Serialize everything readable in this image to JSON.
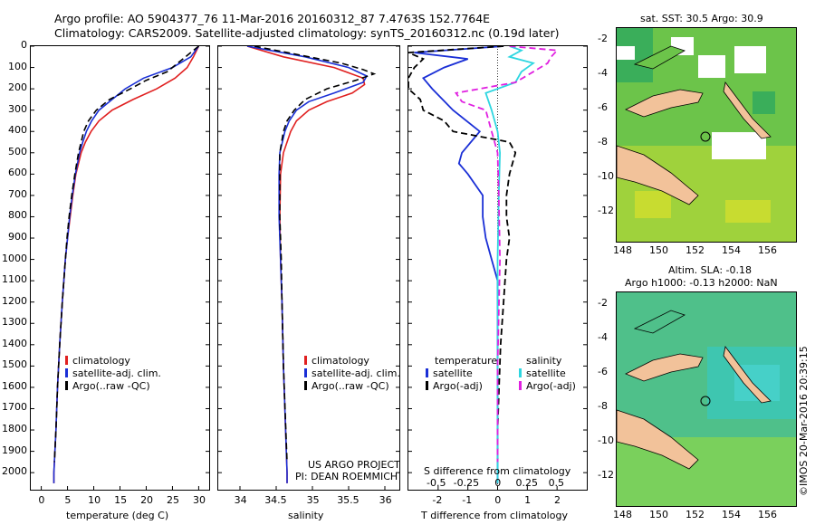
{
  "header": {
    "line1": "Argo profile: AO 5904377_76 11-Mar-2016 20160312_87 7.4763S 152.7764E",
    "line2": "Climatology: CARS2009. Satellite-adjusted climatology: synTS_20160312.nc (0.19d later)"
  },
  "colors": {
    "climatology": "#e02020",
    "satellite": "#1a2fd6",
    "argo": "#000000",
    "sat_s": "#2ed6e0",
    "argo_s": "#e020e0"
  },
  "depth_axis": {
    "ticks": [
      0,
      100,
      200,
      300,
      400,
      500,
      600,
      700,
      800,
      900,
      1000,
      1100,
      1200,
      1300,
      1400,
      1500,
      1600,
      1700,
      1800,
      1900,
      2000
    ],
    "range": [
      0,
      2080
    ]
  },
  "chart_data": [
    {
      "type": "line",
      "name": "temperature",
      "xlabel": "temperature (deg C)",
      "xlim": [
        -2,
        32
      ],
      "xticks": [
        0,
        5,
        10,
        15,
        20,
        25,
        30
      ],
      "series": [
        {
          "name": "climatology",
          "depth": [
            0,
            50,
            100,
            150,
            200,
            250,
            300,
            350,
            400,
            450,
            500,
            600,
            700,
            800,
            900,
            1000,
            1200,
            1400,
            1600,
            1800,
            2000,
            2050
          ],
          "values": [
            30,
            29,
            27.8,
            25.5,
            22,
            17.5,
            13.5,
            11,
            9.5,
            8.4,
            7.6,
            6.6,
            6,
            5.5,
            5,
            4.6,
            4,
            3.5,
            3.1,
            2.8,
            2.4,
            2.4
          ]
        },
        {
          "name": "satellite-adj. clim.",
          "depth": [
            0,
            50,
            100,
            150,
            200,
            250,
            300,
            350,
            400,
            450,
            500,
            600,
            700,
            800,
            900,
            1000,
            1200,
            1400,
            1600,
            1800,
            2000,
            2050
          ],
          "values": [
            30,
            28.5,
            25,
            19.5,
            16,
            13.5,
            11,
            9.6,
            8.6,
            7.9,
            7.3,
            6.5,
            5.9,
            5.4,
            5,
            4.6,
            4,
            3.5,
            3.1,
            2.8,
            2.4,
            2.4
          ]
        },
        {
          "name": "Argo(..raw -QC)",
          "depth": [
            0,
            40,
            80,
            120,
            160,
            200,
            250,
            300,
            350,
            400,
            450,
            500,
            600,
            700,
            800,
            900,
            1000,
            1200,
            1400,
            1600,
            1800,
            1950
          ],
          "values": [
            30,
            28,
            26,
            24,
            20,
            17,
            13,
            10.5,
            9,
            8.1,
            7.6,
            7.1,
            6.4,
            5.8,
            5.3,
            4.9,
            4.6,
            4,
            3.5,
            3.1,
            2.8,
            2.5
          ]
        }
      ],
      "legend": [
        "climatology",
        "satellite-adj. clim.",
        "Argo(..raw -QC)"
      ]
    },
    {
      "type": "line",
      "name": "salinity",
      "xlabel": "salinity",
      "xlim": [
        33.7,
        36.2
      ],
      "xticks": [
        34,
        34.5,
        35,
        35.5,
        36
      ],
      "series": [
        {
          "name": "climatology",
          "depth": [
            0,
            50,
            100,
            150,
            180,
            220,
            260,
            300,
            350,
            400,
            500,
            600,
            800,
            1000,
            1200,
            1500,
            2000,
            2050
          ],
          "values": [
            34.1,
            34.6,
            35.3,
            35.7,
            35.72,
            35.55,
            35.2,
            34.95,
            34.78,
            34.7,
            34.6,
            34.56,
            34.55,
            34.56,
            34.58,
            34.6,
            34.65,
            34.65
          ]
        },
        {
          "name": "satellite-adj. clim.",
          "depth": [
            0,
            50,
            100,
            140,
            170,
            220,
            260,
            300,
            350,
            400,
            500,
            600,
            800,
            1000,
            1200,
            1500,
            2000,
            2050
          ],
          "values": [
            34.1,
            34.9,
            35.5,
            35.75,
            35.7,
            35.3,
            34.95,
            34.78,
            34.68,
            34.62,
            34.55,
            34.54,
            34.54,
            34.56,
            34.58,
            34.6,
            34.65,
            34.65
          ]
        },
        {
          "name": "Argo(..raw -QC)",
          "depth": [
            0,
            40,
            80,
            110,
            130,
            160,
            200,
            250,
            300,
            350,
            400,
            500,
            600,
            800,
            1000,
            1200,
            1500,
            1950
          ],
          "values": [
            34.2,
            34.8,
            35.4,
            35.7,
            35.85,
            35.6,
            35.2,
            34.9,
            34.75,
            34.65,
            34.6,
            34.55,
            34.55,
            34.55,
            34.57,
            34.58,
            34.6,
            34.65
          ]
        }
      ],
      "legend": [
        "climatology",
        "satellite-adj. clim.",
        "Argo(..raw -QC)"
      ],
      "annotation": [
        "US ARGO PROJECT",
        "PI: DEAN ROEMMICH"
      ]
    },
    {
      "type": "line",
      "name": "difference",
      "xlabel_bottom": "T difference from climatology",
      "xticks_bottom": [
        -2,
        -1,
        0,
        1,
        2
      ],
      "xlim_bottom": [
        -3,
        3
      ],
      "xlabel_top": "S difference from climatology",
      "xticks_top": [
        -0.5,
        -0.25,
        0,
        0.25,
        0.5
      ],
      "xlim_top": [
        -0.75,
        0.75
      ],
      "series": [
        {
          "name": "T satellite",
          "axis": "T",
          "depth": [
            0,
            30,
            60,
            100,
            150,
            200,
            300,
            400,
            500,
            550,
            600,
            700,
            800,
            900,
            1000,
            1100,
            1200,
            1400,
            1600,
            1800,
            2000,
            2050
          ],
          "values": [
            0.2,
            -2.8,
            -1,
            -1.8,
            -2.5,
            -2.2,
            -1.5,
            -0.6,
            -1.2,
            -1.3,
            -1,
            -0.5,
            -0.5,
            -0.4,
            -0.2,
            0,
            0,
            0,
            0,
            0,
            0,
            0
          ]
        },
        {
          "name": "T Argo(-adj)",
          "axis": "T",
          "depth": [
            0,
            30,
            60,
            100,
            150,
            200,
            250,
            300,
            350,
            400,
            450,
            500,
            550,
            600,
            700,
            800,
            900,
            1000,
            1100,
            1200,
            1400,
            1600,
            1800,
            1950
          ],
          "values": [
            0.2,
            -3,
            -2.5,
            -2.8,
            -3,
            -3,
            -2.6,
            -2.5,
            -1.8,
            -1.5,
            0.4,
            0.6,
            0.5,
            0.4,
            0.3,
            0.3,
            0.4,
            0.3,
            0.25,
            0.2,
            0.1,
            0.05,
            0,
            0
          ]
        },
        {
          "name": "S satellite",
          "axis": "S",
          "depth": [
            0,
            20,
            50,
            80,
            120,
            170,
            220,
            300,
            400,
            500,
            700,
            1000,
            1500,
            2050
          ],
          "values": [
            0.1,
            0.2,
            0.1,
            0.3,
            0.2,
            0.15,
            -0.1,
            -0.05,
            0,
            0.02,
            0.01,
            0,
            0,
            0
          ]
        },
        {
          "name": "S Argo(-adj)",
          "axis": "S",
          "depth": [
            0,
            20,
            50,
            80,
            120,
            170,
            220,
            260,
            300,
            400,
            500,
            700,
            1000,
            1500,
            1950
          ],
          "values": [
            0.1,
            0.5,
            0.45,
            0.42,
            0.3,
            0.15,
            -0.35,
            -0.3,
            -0.1,
            -0.05,
            0,
            0.01,
            0.02,
            0,
            0
          ]
        }
      ],
      "legend_t": {
        "title": "temperature",
        "items": [
          "satellite",
          "Argo(-adj)"
        ]
      },
      "legend_s": {
        "title": "salinity",
        "items": [
          "satellite",
          "Argo(-adj)"
        ]
      }
    }
  ],
  "maps": {
    "sst_title": "sat. SST: 30.5 Argo: 30.9",
    "sla_title_1": "Altim. SLA: -0.18",
    "sla_title_2": "Argo h1000: -0.13 h2000: NaN",
    "lat_ticks": [
      "-2",
      "-4",
      "-6",
      "-8",
      "-10",
      "-12"
    ],
    "lon_ticks": [
      "148",
      "150",
      "152",
      "154",
      "156"
    ],
    "credit": "©IMOS 20-Mar-2016 20:39:15"
  }
}
